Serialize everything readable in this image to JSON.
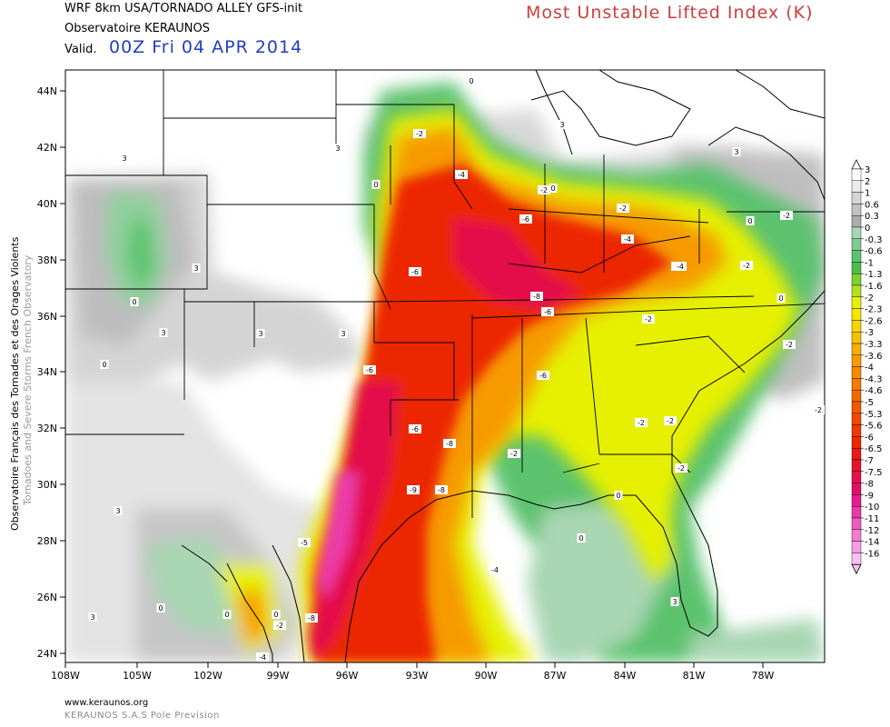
{
  "header": {
    "model": "WRF 8km USA/TORNADO ALLEY  GFS-init",
    "org": "Observatoire KERAUNOS",
    "valid_label": "Valid.",
    "valid_time": "00Z Fri 04 APR 2014",
    "title": "Most Unstable Lifted Index (K)"
  },
  "sidebar": {
    "line1": "Observatoire Français des Tornades et des Orages Violents",
    "line2": "Tornadoes and Severe Storms French Observatory"
  },
  "axes": {
    "lat_labels": [
      "44N",
      "42N",
      "40N",
      "38N",
      "36N",
      "34N",
      "32N",
      "30N",
      "28N",
      "26N",
      "24N"
    ],
    "lon_labels": [
      "108W",
      "105W",
      "102W",
      "99W",
      "96W",
      "93W",
      "90W",
      "87W",
      "84W",
      "81W",
      "78W"
    ]
  },
  "legend": {
    "levels": [
      "3",
      "2",
      "1",
      "0.6",
      "0.3",
      "0",
      "-0.3",
      "-0.6",
      "-1",
      "-1.3",
      "-1.6",
      "-2",
      "-2.3",
      "-2.6",
      "-3",
      "-3.3",
      "-3.6",
      "-4",
      "-4.3",
      "-4.6",
      "-5",
      "-5.3",
      "-5.6",
      "-6",
      "-6.5",
      "-7",
      "-7.5",
      "-8",
      "-9",
      "-10",
      "-11",
      "-12",
      "-14",
      "-16"
    ],
    "colors": [
      "#ffffff",
      "#ececec",
      "#d6d6d6",
      "#c2c2c2",
      "#adadad",
      "#a9d6b3",
      "#7fcc8f",
      "#5cc26e",
      "#4cbc4a",
      "#7fd030",
      "#b5e020",
      "#e6f000",
      "#f6e600",
      "#f6d600",
      "#f6c200",
      "#f6ae00",
      "#f69a00",
      "#f68a00",
      "#f67a00",
      "#f46800",
      "#f25800",
      "#f04800",
      "#ee3800",
      "#ec2800",
      "#e81a1a",
      "#e6142e",
      "#e41048",
      "#e20e62",
      "#e61c8c",
      "#ea3aa8",
      "#ee5ac0",
      "#f27ad2",
      "#f69ae2",
      "#f8c0ee"
    ]
  },
  "contour_labels": [
    "0",
    "-2",
    "-4",
    "-6",
    "-6",
    "-8",
    "-6",
    "-6",
    "-8",
    "-6",
    "-8",
    "-9",
    "-6",
    "-2",
    "-2",
    "-2",
    "-4",
    "-2",
    "-2",
    "-2",
    "-4",
    "-4",
    "-2",
    "-4",
    "0",
    "-2",
    "-2",
    "0",
    "0",
    "3",
    "3",
    "3",
    "3",
    "0",
    "3",
    "0",
    "0",
    "3",
    "-5",
    "-8",
    "-2",
    "-4",
    "0",
    "0",
    "0",
    "3",
    "3",
    "3",
    "0",
    "-2",
    "-2",
    "-2",
    "0",
    "3",
    "3",
    "0"
  ],
  "footer": {
    "site": "www.keraunos.org",
    "company": "KERAUNOS S.A.S Pole Prevision"
  }
}
